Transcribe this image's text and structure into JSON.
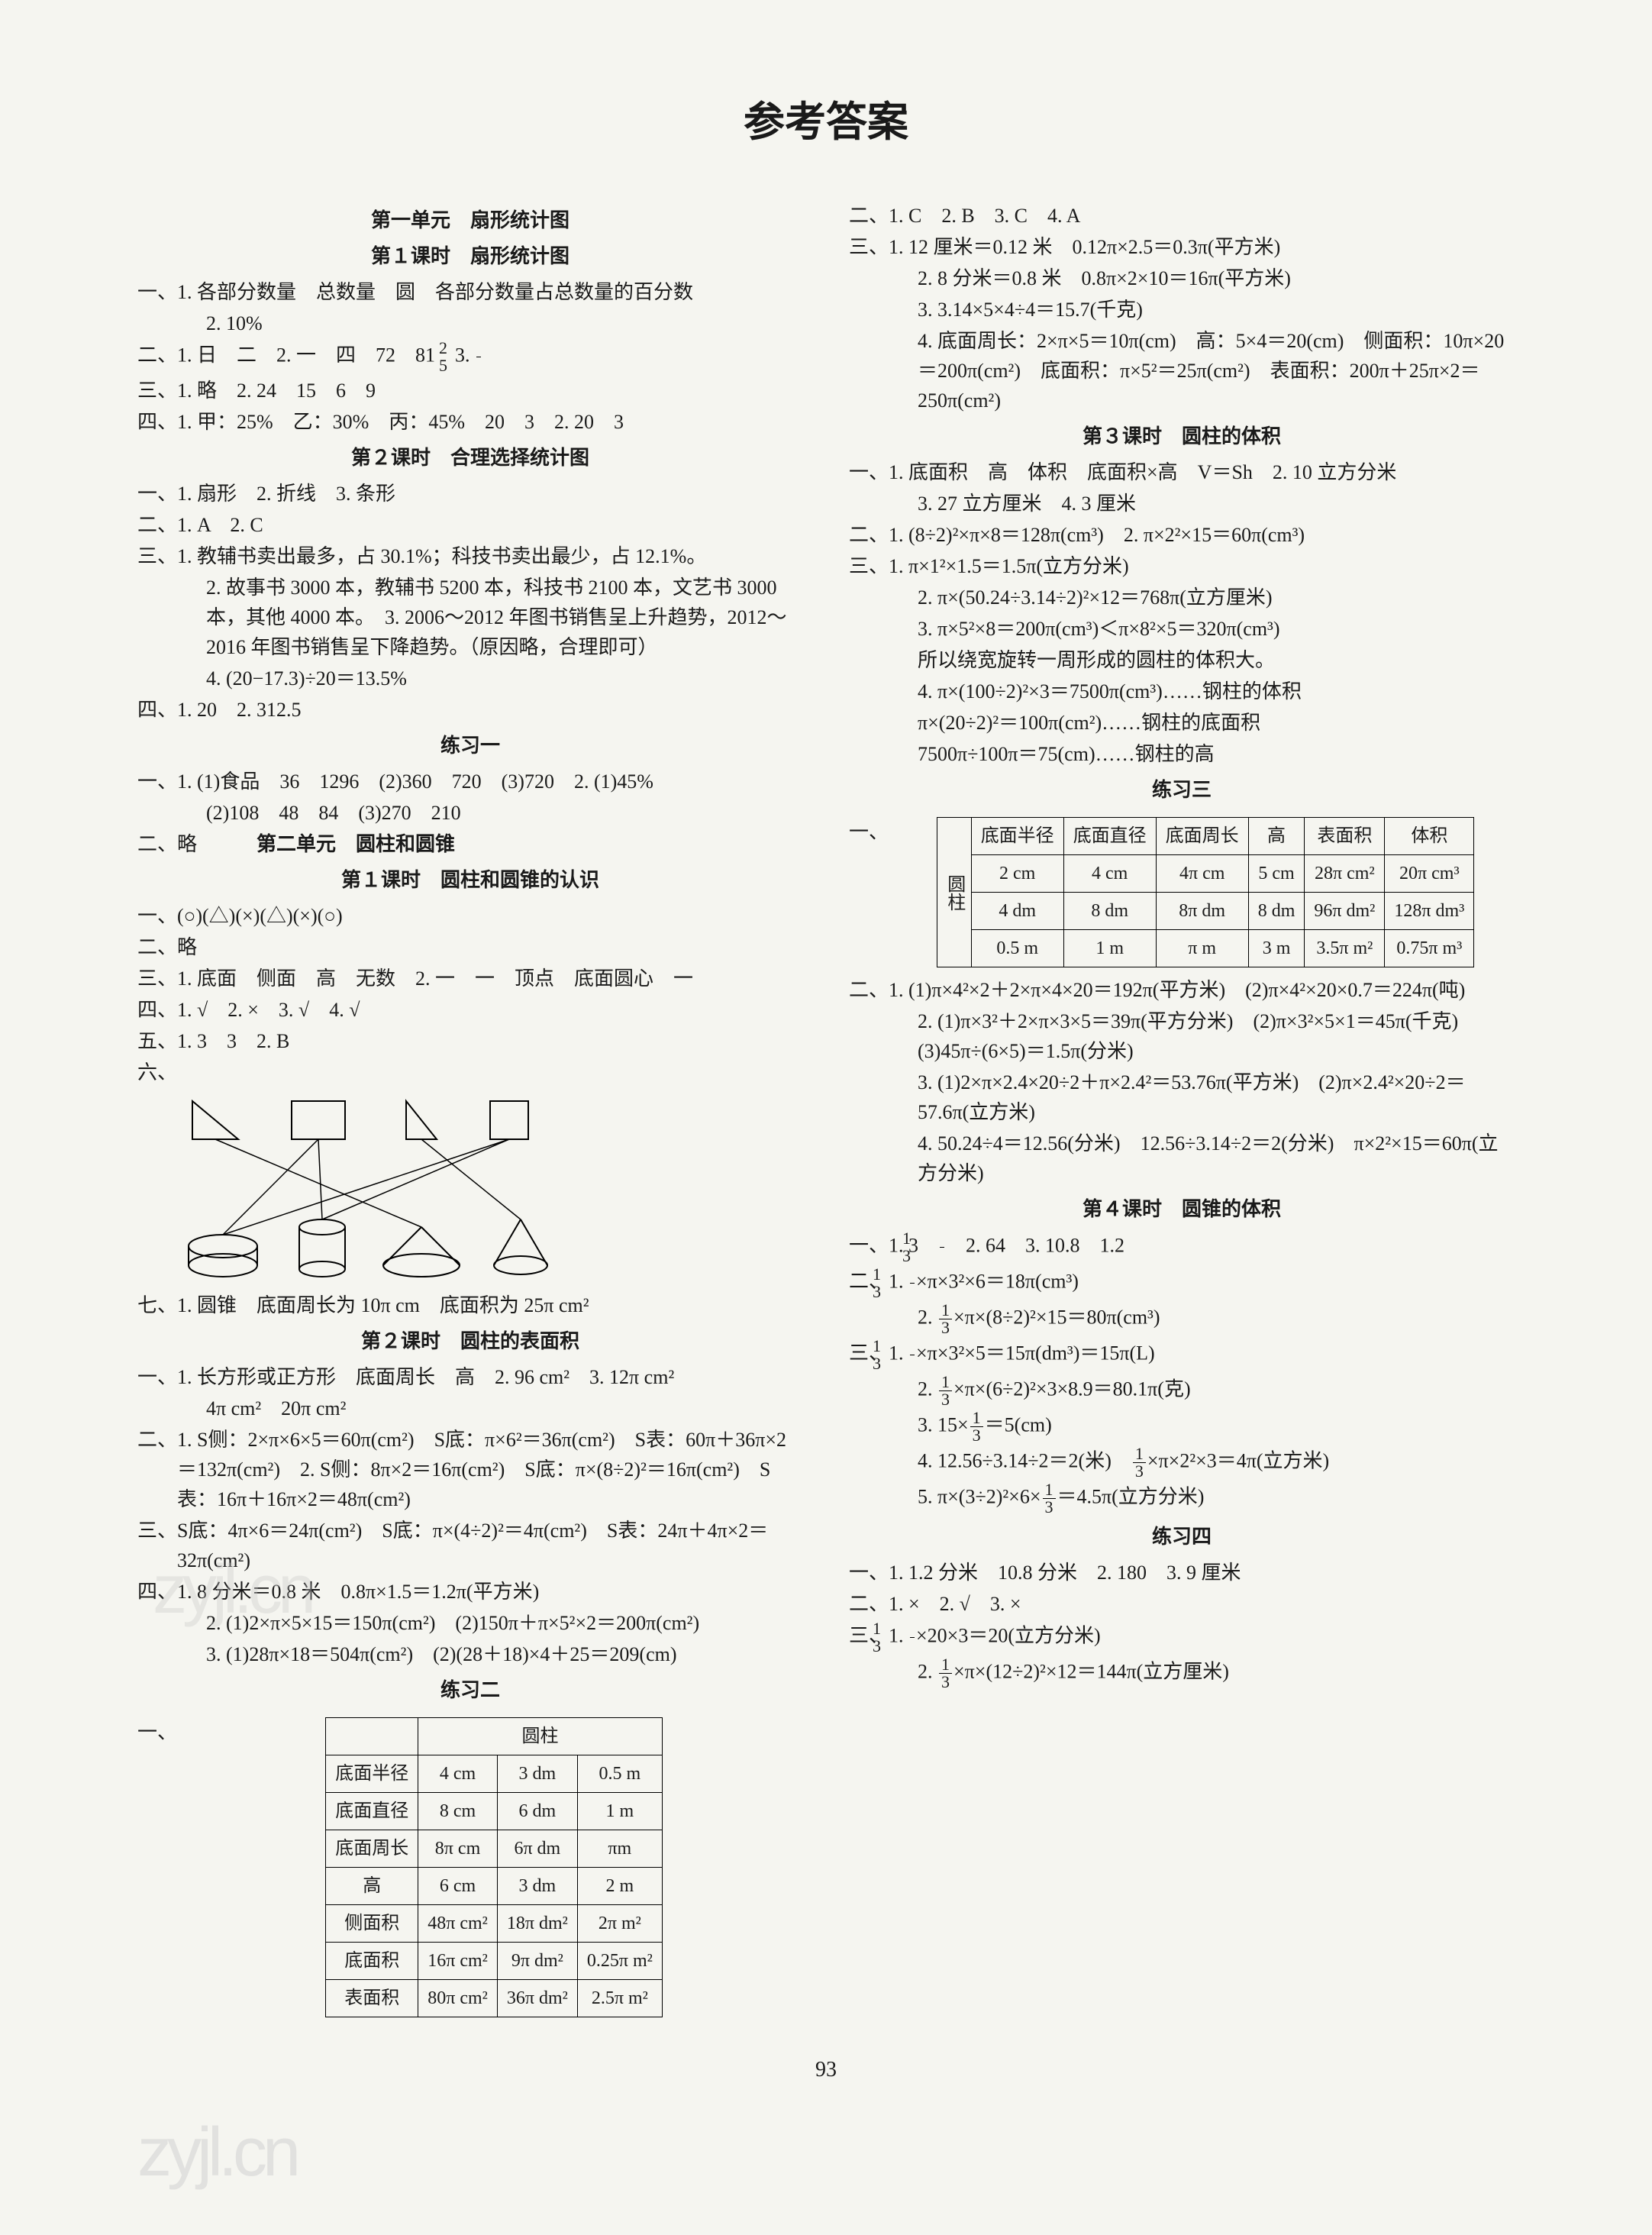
{
  "title": "参考答案",
  "page_number": "93",
  "watermark": "zyjl.cn",
  "left": {
    "u1_title": "第一单元　扇形统计图",
    "u1_l1_title": "第１课时　扇形统计图",
    "u1_l1_1": "一、1. 各部分数量　总数量　圆　各部分数量占总数量的百分数",
    "u1_l1_1b": "2. 10%",
    "u1_l1_2": "二、1. 日　二　2. 一　四　72　81　3. ",
    "u1_l1_3": "三、1. 略　2. 24　15　6　9",
    "u1_l1_4": "四、1. 甲：25%　乙：30%　丙：45%　20　3　2. 20　3",
    "u1_l2_title": "第２课时　合理选择统计图",
    "u1_l2_1": "一、1. 扇形　2. 折线　3. 条形",
    "u1_l2_2": "二、1. A　2. C",
    "u1_l2_3a": "三、1. 教辅书卖出最多，占 30.1%；科技书卖出最少，占 12.1%。",
    "u1_l2_3b": "2. 故事书 3000 本，教辅书 5200 本，科技书 2100 本，文艺书 3000 本，其他 4000 本。　3. 2006～2012 年图书销售呈上升趋势，2012～2016 年图书销售呈下降趋势。（原因略，合理即可）",
    "u1_l2_3c": "4. (20−17.3)÷20＝13.5%",
    "u1_l2_4": "四、1. 20　2. 312.5",
    "ex1_title": "练习一",
    "ex1_1": "一、1. (1)食品　36　1296　(2)360　720　(3)720　2. (1)45%",
    "ex1_1b": "(2)108　48　84　(3)270　210",
    "ex1_2": "二、略",
    "u2_title": "第二单元　圆柱和圆锥",
    "u2_l1_title": "第１课时　圆柱和圆锥的认识",
    "u2_l1_1": "一、(○)(△)(×)(△)(×)(○)",
    "u2_l1_2": "二、略",
    "u2_l1_3": "三、1. 底面　侧面　高　无数　2. 一　一　顶点　底面圆心　一",
    "u2_l1_4": "四、1. √　2. ×　3. √　4. √",
    "u2_l1_5": "五、1. 3　3　2. B",
    "u2_l1_6": "六、",
    "u2_l1_7": "七、1. 圆锥　底面周长为 10π cm　底面积为 25π cm²",
    "u2_l2_title": "第２课时　圆柱的表面积",
    "u2_l2_1a": "一、1. 长方形或正方形　底面周长　高　2. 96 cm²　3. 12π cm²",
    "u2_l2_1b": "4π cm²　20π cm²",
    "u2_l2_2a": "二、1. S侧：2×π×6×5＝60π(cm²)　S底：π×6²＝36π(cm²)　S表：60π＋36π×2＝132π(cm²)　2. S侧：8π×2＝16π(cm²)　S底：π×(8÷2)²＝16π(cm²)　S表：16π＋16π×2＝48π(cm²)",
    "u2_l2_3": "三、S底：4π×6＝24π(cm²)　S底：π×(4÷2)²＝4π(cm²)　S表：24π＋4π×2＝32π(cm²)",
    "u2_l2_4a": "四、1. 8 分米＝0.8 米　0.8π×1.5＝1.2π(平方米)",
    "u2_l2_4b": "2. (1)2×π×5×15＝150π(cm²)　(2)150π＋π×5²×2＝200π(cm²)",
    "u2_l2_4c": "3. (1)28π×18＝504π(cm²)　(2)(28＋18)×4＋25＝209(cm)",
    "ex2_title": "练习二",
    "ex2_1": "一、",
    "table2": {
      "header": [
        "",
        "圆柱",
        "",
        ""
      ],
      "rows": [
        [
          "底面半径",
          "4 cm",
          "3 dm",
          "0.5 m"
        ],
        [
          "底面直径",
          "8 cm",
          "6 dm",
          "1 m"
        ],
        [
          "底面周长",
          "8π cm",
          "6π dm",
          "πm"
        ],
        [
          "高",
          "6 cm",
          "3 dm",
          "2 m"
        ],
        [
          "侧面积",
          "48π cm²",
          "18π dm²",
          "2π m²"
        ],
        [
          "底面积",
          "16π cm²",
          "9π dm²",
          "0.25π m²"
        ],
        [
          "表面积",
          "80π cm²",
          "36π dm²",
          "2.5π m²"
        ]
      ]
    }
  },
  "right": {
    "r1": "二、1. C　2. B　3. C　4. A",
    "r2a": "三、1. 12 厘米＝0.12 米　0.12π×2.5＝0.3π(平方米)",
    "r2b": "2. 8 分米＝0.8 米　0.8π×2×10＝16π(平方米)",
    "r2c": "3. 3.14×5×4÷4＝15.7(千克)",
    "r2d": "4. 底面周长：2×π×5＝10π(cm)　高：5×4＝20(cm)　侧面积：10π×20＝200π(cm²)　底面积：π×5²＝25π(cm²)　表面积：200π＋25π×2＝250π(cm²)",
    "u2_l3_title": "第３课时　圆柱的体积",
    "r3a": "一、1. 底面积　高　体积　底面积×高　V＝Sh　2. 10 立方分米",
    "r3b": "3. 27 立方厘米　4. 3 厘米",
    "r4": "二、1.  (8÷2)²×π×8＝128π(cm³)　2. π×2²×15＝60π(cm³)",
    "r5a": "三、1. π×1²×1.5＝1.5π(立方分米)",
    "r5b": "2. π×(50.24÷3.14÷2)²×12＝768π(立方厘米)",
    "r5c": "3. π×5²×8＝200π(cm³)＜π×8²×5＝320π(cm³)",
    "r5d": "所以绕宽旋转一周形成的圆柱的体积大。",
    "r5e": "4. π×(100÷2)²×3＝7500π(cm³)……钢柱的体积",
    "r5f": "π×(20÷2)²＝100π(cm²)……钢柱的底面积",
    "r5g": "7500π÷100π＝75(cm)……钢柱的高",
    "ex3_title": "练习三",
    "ex3_1": "一、",
    "table3": {
      "cols": [
        "底面半径",
        "底面直径",
        "底面周长",
        "高",
        "表面积",
        "体积"
      ],
      "rows": [
        [
          "2 cm",
          "4 cm",
          "4π cm",
          "5 cm",
          "28π cm²",
          "20π cm³"
        ],
        [
          "4 dm",
          "8 dm",
          "8π dm",
          "8 dm",
          "96π dm²",
          "128π dm³"
        ],
        [
          "0.5 m",
          "1 m",
          "π m",
          "3 m",
          "3.5π m²",
          "0.75π m³"
        ]
      ],
      "vlabel": "圆柱"
    },
    "r6a": "二、1. (1)π×4²×2＋2×π×4×20＝192π(平方米)　(2)π×4²×20×0.7＝224π(吨)",
    "r6b": "2. (1)π×3²＋2×π×3×5＝39π(平方分米)　(2)π×3²×5×1＝45π(千克)　(3)45π÷(6×5)＝1.5π(分米)",
    "r6c": "3. (1)2×π×2.4×20÷2＋π×2.4²＝53.76π(平方米)　(2)π×2.4²×20÷2＝57.6π(立方米)",
    "r6d": "4. 50.24÷4＝12.56(分米)　12.56÷3.14÷2＝2(分米)　π×2²×15＝60π(立方分米)",
    "u2_l4_title": "第４课时　圆锥的体积",
    "r7": "一、1. 3　",
    "r7b": "　2. 64　3. 10.8　1.2",
    "r8a": "二、1. ",
    "r8a2": "×π×3²×6＝18π(cm³)",
    "r8b": "2. ",
    "r8b2": "×π×(8÷2)²×15＝80π(cm³)",
    "r9a": "三、1. ",
    "r9a2": "×π×3²×5＝15π(dm³)＝15π(L)",
    "r9b": "2. ",
    "r9b2": "×π×(6÷2)²×3×8.9＝80.1π(克)",
    "r9c": "3. 15×",
    "r9c2": "＝5(cm)",
    "r9d": "4. 12.56÷3.14÷2＝2(米)　",
    "r9d2": "×π×2²×3＝4π(立方米)",
    "r9e": "5. π×(3÷2)²×6×",
    "r9e2": "＝4.5π(立方分米)",
    "ex4_title": "练习四",
    "r10": "一、1. 1.2 分米　10.8 分米　2. 180　3. 9 厘米",
    "r11": "二、1. ×　2. √　3. ×",
    "r12a": "三、1. ",
    "r12a2": "×20×3＝20(立方分米)",
    "r12b": "2. ",
    "r12b2": "×π×(12÷2)²×12＝144π(立方厘米)"
  }
}
